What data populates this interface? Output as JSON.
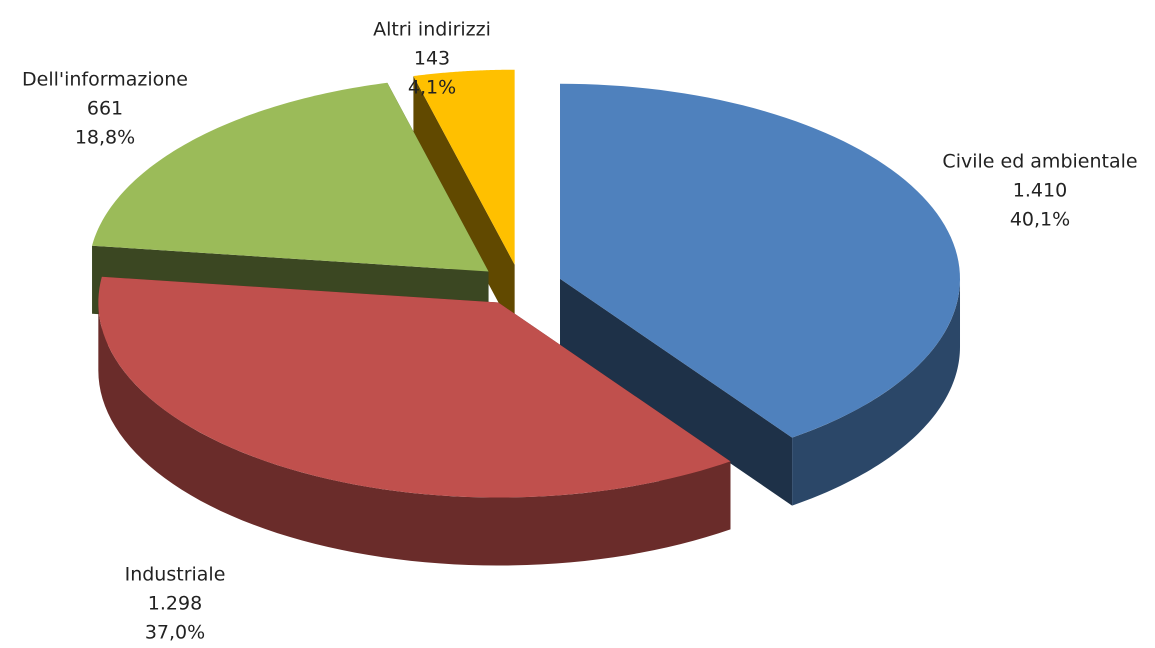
{
  "chart_data": {
    "type": "pie3d",
    "categories": [
      "Civile ed ambientale",
      "Industriale",
      "Dell'informazione",
      "Altri indirizzi"
    ],
    "values": [
      1410,
      1298,
      661,
      143
    ],
    "value_labels": [
      "1.410",
      "1.298",
      "661",
      "143"
    ],
    "percentages": [
      40.1,
      37.0,
      18.8,
      4.1
    ],
    "percentage_labels": [
      "40,1%",
      "37,0%",
      "18,8%",
      "4,1%"
    ],
    "colors": [
      "#4f81bd",
      "#c0504d",
      "#9bbb59",
      "#ffc000"
    ]
  }
}
